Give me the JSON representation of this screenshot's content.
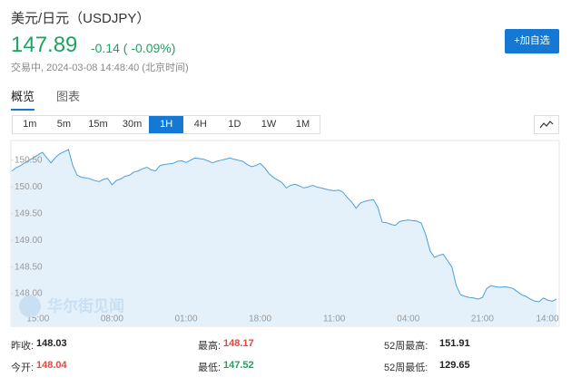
{
  "header": {
    "title": "美元/日元（USDJPY）",
    "price": "147.89",
    "change": "-0.14 ( -0.09%)",
    "status": "交易中, 2024-03-08 14:48:40 (北京时间)"
  },
  "button": "+加自选",
  "tabs": [
    "概览",
    "图表"
  ],
  "intervals": [
    "1m",
    "5m",
    "15m",
    "30m",
    "1H",
    "4H",
    "1D",
    "1W",
    "1M"
  ],
  "watermark": "华尔街见闻",
  "stats": [
    {
      "label": "昨收:",
      "value": "148.03"
    },
    {
      "label": "最高:",
      "value": "148.17"
    },
    {
      "label": "52周最高:",
      "value": "151.91"
    },
    {
      "label": "今开:",
      "value": "148.04"
    },
    {
      "label": "最低:",
      "value": "147.52"
    },
    {
      "label": "52周最低:",
      "value": "129.65"
    }
  ],
  "chart_data": {
    "type": "area",
    "color": "#4a9fdf",
    "fill": "#e4f1fb",
    "categories": [
      null,
      null,
      null,
      null,
      null,
      null,
      "15:00",
      null,
      null,
      null,
      null,
      null,
      null,
      null,
      null,
      null,
      null,
      null,
      null,
      null,
      null,
      null,
      null,
      "08:00",
      null,
      null,
      null,
      null,
      null,
      null,
      null,
      null,
      null,
      null,
      null,
      null,
      null,
      null,
      null,
      null,
      "01:00",
      null,
      null,
      null,
      null,
      null,
      null,
      null,
      null,
      null,
      null,
      null,
      null,
      null,
      null,
      null,
      null,
      "18:00",
      null,
      null,
      null,
      null,
      null,
      null,
      null,
      null,
      null,
      null,
      null,
      null,
      null,
      null,
      null,
      null,
      "11:00",
      null,
      null,
      null,
      null,
      null,
      null,
      null,
      null,
      null,
      null,
      null,
      null,
      null,
      null,
      null,
      null,
      "04:00",
      null,
      null,
      null,
      null,
      null,
      null,
      null,
      null,
      null,
      null,
      null,
      null,
      null,
      null,
      null,
      null,
      "21:00",
      null,
      null,
      null,
      null,
      null,
      null,
      null,
      null,
      null,
      null,
      null,
      null,
      null,
      null,
      null,
      null,
      "14:00"
    ],
    "values": [
      150.3,
      150.36,
      150.4,
      150.45,
      150.5,
      150.55,
      150.6,
      150.65,
      150.55,
      150.45,
      150.55,
      150.62,
      150.66,
      150.7,
      150.4,
      150.22,
      150.18,
      150.17,
      150.15,
      150.12,
      150.1,
      150.14,
      150.16,
      150.04,
      150.12,
      150.15,
      150.2,
      150.22,
      150.28,
      150.3,
      150.34,
      150.37,
      150.32,
      150.3,
      150.4,
      150.42,
      150.43,
      150.44,
      150.48,
      150.49,
      150.46,
      150.5,
      150.54,
      150.53,
      150.52,
      150.49,
      150.45,
      150.48,
      150.5,
      150.52,
      150.54,
      150.52,
      150.5,
      150.48,
      150.42,
      150.38,
      150.4,
      150.44,
      150.36,
      150.25,
      150.18,
      150.13,
      150.08,
      149.98,
      150.03,
      150.05,
      150.02,
      149.98,
      150.0,
      150.03,
      150.0,
      149.98,
      149.96,
      149.94,
      149.93,
      149.94,
      149.9,
      149.8,
      149.72,
      149.6,
      149.7,
      149.73,
      149.75,
      149.76,
      149.62,
      149.34,
      149.33,
      149.3,
      149.28,
      149.35,
      149.37,
      149.38,
      149.37,
      149.36,
      149.32,
      149.1,
      148.8,
      148.68,
      148.72,
      148.74,
      148.62,
      148.5,
      148.15,
      147.98,
      147.95,
      147.93,
      147.92,
      147.9,
      147.93,
      148.1,
      148.15,
      148.13,
      148.12,
      148.13,
      148.12,
      148.1,
      148.04,
      147.98,
      147.95,
      147.9,
      147.86,
      147.85,
      147.92,
      147.88,
      147.86,
      147.9
    ],
    "ylim": [
      147.39,
      150.87
    ],
    "yticks": [
      {
        "value": 148,
        "label": "148.00"
      },
      {
        "value": 148.5,
        "label": "148.50"
      },
      {
        "value": 149,
        "label": "149.00"
      },
      {
        "value": 149.5,
        "label": "149.50"
      },
      {
        "value": 150,
        "label": "150.00"
      },
      {
        "value": 150.5,
        "label": "150.50"
      }
    ]
  }
}
